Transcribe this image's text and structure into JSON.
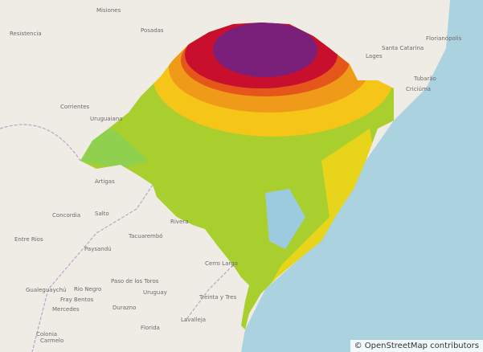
{
  "map": {
    "labels": [
      {
        "text": "Resistencia"
      },
      {
        "text": "Posadas"
      },
      {
        "text": "Corrientes"
      },
      {
        "text": "Misiones"
      },
      {
        "text": "Lages"
      },
      {
        "text": "Santa Catarina"
      },
      {
        "text": "Florianópolis"
      },
      {
        "text": "Tubarão"
      },
      {
        "text": "Criciúma"
      },
      {
        "text": "Uruguaiana"
      },
      {
        "text": "Artigas"
      },
      {
        "text": "Salto"
      },
      {
        "text": "Concordia"
      },
      {
        "text": "Rivera"
      },
      {
        "text": "Paysandú"
      },
      {
        "text": "Tacuarembó"
      },
      {
        "text": "Paso de los Toros"
      },
      {
        "text": "Uruguay"
      },
      {
        "text": "Cerro Largo"
      },
      {
        "text": "Rio Negro"
      },
      {
        "text": "Fray Bentos"
      },
      {
        "text": "Mercedes"
      },
      {
        "text": "Durazno"
      },
      {
        "text": "Treinta y Tres"
      },
      {
        "text": "Florida"
      },
      {
        "text": "Lavalleja"
      },
      {
        "text": "Gualeguaychú"
      },
      {
        "text": "Colonia"
      },
      {
        "text": "Carmelo"
      },
      {
        "text": "Entre Ríos"
      }
    ],
    "attribution": "© OpenStreetMap contributors"
  }
}
